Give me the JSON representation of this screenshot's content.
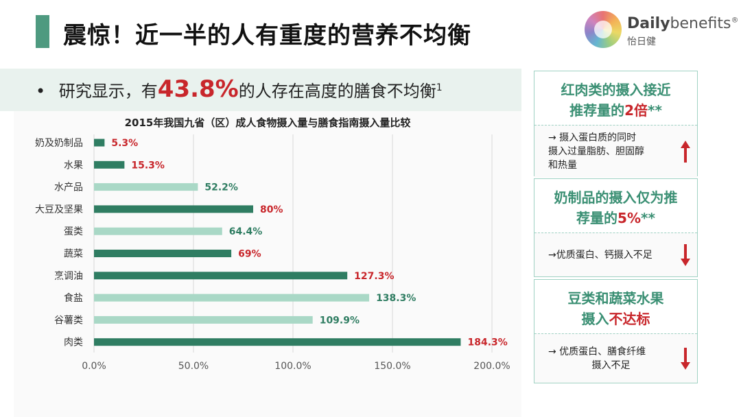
{
  "header": {
    "title": "震惊！近一半的人有重度的营养不均衡"
  },
  "logo": {
    "en_bold": "Daily",
    "en_light": "benefits",
    "reg": "®",
    "cn": "怡日健"
  },
  "bullet": {
    "dot": "•",
    "prefix": "研究显示，有",
    "highlight": "43.8%",
    "suffix": "的人存在高度的膳食不均衡",
    "sup": "1"
  },
  "chart_data": {
    "type": "bar",
    "orientation": "horizontal",
    "title": "2015年我国九省（区）成人食物摄入量与膳食指南摄入量比较",
    "categories": [
      "奶及奶制品",
      "水果",
      "水产品",
      "大豆及坚果",
      "蛋类",
      "蔬菜",
      "烹调油",
      "食盐",
      "谷薯类",
      "肉类"
    ],
    "values": [
      5.3,
      15.3,
      52.2,
      80,
      64.4,
      69,
      127.3,
      138.3,
      109.9,
      184.3
    ],
    "value_labels": [
      "5.3%",
      "15.3%",
      "52.2%",
      "80%",
      "64.4%",
      "69%",
      "127.3%",
      "138.3%",
      "109.9%",
      "184.3%"
    ],
    "bar_style": [
      "dark",
      "dark",
      "light",
      "dark",
      "light",
      "dark",
      "dark",
      "light",
      "light",
      "dark"
    ],
    "label_color": [
      "red",
      "red",
      "green",
      "red",
      "green",
      "red",
      "red",
      "green",
      "green",
      "red"
    ],
    "xlim": [
      0,
      200
    ],
    "xticks": [
      "0.0%",
      "50.0%",
      "100.0%",
      "150.0%",
      "200.0%"
    ],
    "grid": true,
    "colors": {
      "dark": "#2f7d62",
      "light": "#a9d8c6",
      "red": "#c8262b",
      "green": "#2f7d62"
    }
  },
  "cards": [
    {
      "head_lines": [
        [
          {
            "t": "红肉类的摄入接近"
          }
        ],
        [
          {
            "t": "推荐量的"
          },
          {
            "t": "2倍",
            "red": true
          },
          {
            "t": "**"
          }
        ]
      ],
      "body_lines": [
        "→ 摄入蛋白质的同时",
        "摄入过量脂肪、胆固醇",
        "和热量"
      ],
      "arrow": "up"
    },
    {
      "head_lines": [
        [
          {
            "t": "奶制品的摄入仅为推"
          }
        ],
        [
          {
            "t": "荐量的"
          },
          {
            "t": "5%",
            "red": true
          },
          {
            "t": "**"
          }
        ]
      ],
      "body_lines": [
        "→优质蛋白、钙摄入不足"
      ],
      "arrow": "down"
    },
    {
      "head_lines": [
        [
          {
            "t": "豆类和蔬菜水果"
          }
        ],
        [
          {
            "t": "摄入"
          },
          {
            "t": "不达标",
            "red": true
          }
        ]
      ],
      "body_lines": [
        "→ 优质蛋白、膳食纤维",
        "摄入不足"
      ],
      "arrow": "down"
    }
  ]
}
